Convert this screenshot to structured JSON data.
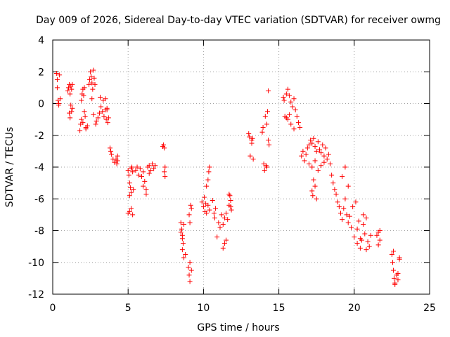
{
  "chart_data": {
    "type": "scatter",
    "title": "Day 009 of 2026, Sidereal Day-to-day VTEC variation (SDTVAR) for receiver owmg",
    "xlabel": "GPS time / hours",
    "ylabel": "SDTVAR / TECUs",
    "xlim": [
      0,
      25
    ],
    "ylim": [
      -12,
      4
    ],
    "xticks": [
      0,
      5,
      10,
      15,
      20,
      25
    ],
    "yticks": [
      -12,
      -10,
      -8,
      -6,
      -4,
      -2,
      0,
      2,
      4
    ],
    "grid": true,
    "marker": "+",
    "color": "#ff0000",
    "series": [
      {
        "name": "SDTVAR",
        "x": [
          0.25,
          0.3,
          0.35,
          0.4,
          0.45,
          0.5,
          0.3,
          0.4,
          1.0,
          1.05,
          1.1,
          1.15,
          1.2,
          1.25,
          1.3,
          1.1,
          1.15,
          1.2,
          1.25,
          1.3,
          1.8,
          1.85,
          1.9,
          1.95,
          2.0,
          2.05,
          2.1,
          2.15,
          2.2,
          1.9,
          2.0,
          2.1,
          2.2,
          2.3,
          2.4,
          2.45,
          2.5,
          2.55,
          2.6,
          2.65,
          2.7,
          2.75,
          2.8,
          2.6,
          2.7,
          2.85,
          2.9,
          3.0,
          3.1,
          3.15,
          3.2,
          3.3,
          3.35,
          3.4,
          3.5,
          3.55,
          3.6,
          3.65,
          3.7,
          3.5,
          3.6,
          3.8,
          3.85,
          3.9,
          4.0,
          4.1,
          4.2,
          4.25,
          4.3,
          4.3,
          5.0,
          5.05,
          5.1,
          5.15,
          5.2,
          5.25,
          5.3,
          5.35,
          5.0,
          5.1,
          5.2,
          5.3,
          5.1,
          5.2,
          5.5,
          5.6,
          5.7,
          5.8,
          5.9,
          6.0,
          6.1,
          6.2,
          6.3,
          6.4,
          6.5,
          6.6,
          6.7,
          6.8,
          6.0,
          6.2,
          6.4,
          7.3,
          7.35,
          7.4,
          7.45,
          7.4,
          7.45,
          8.5,
          8.55,
          8.6,
          8.65,
          8.7,
          8.6,
          8.7,
          8.8,
          8.5,
          8.6,
          9.0,
          9.05,
          9.1,
          9.15,
          9.2,
          9.1,
          9.2,
          9.05,
          9.1,
          9.9,
          10.0,
          10.05,
          10.1,
          10.15,
          10.2,
          10.3,
          10.35,
          10.4,
          10.2,
          10.3,
          10.4,
          10.6,
          10.7,
          10.75,
          10.8,
          10.9,
          11.0,
          11.1,
          11.2,
          11.3,
          11.4,
          11.5,
          11.6,
          11.3,
          11.4,
          11.5,
          11.7,
          11.75,
          11.8,
          11.85,
          11.7,
          11.8,
          13.0,
          13.05,
          13.1,
          13.2,
          13.25,
          13.3,
          13.2,
          13.9,
          13.95,
          14.0,
          14.05,
          14.1,
          14.15,
          14.2,
          14.25,
          14.3,
          14.3,
          14.35,
          14.2,
          15.3,
          15.35,
          15.4,
          15.5,
          15.6,
          15.7,
          15.8,
          15.9,
          16.0,
          16.1,
          15.5,
          15.6,
          15.7,
          15.8,
          16.0,
          16.2,
          16.3,
          16.4,
          16.5,
          16.6,
          16.7,
          16.8,
          16.9,
          17.0,
          17.1,
          17.2,
          17.3,
          17.4,
          17.5,
          17.6,
          17.7,
          17.8,
          17.9,
          18.0,
          18.1,
          18.2,
          17.0,
          17.2,
          17.4,
          17.6,
          17.8,
          18.0,
          17.2,
          17.25,
          17.3,
          17.4,
          17.5,
          18.3,
          18.4,
          18.5,
          18.6,
          18.7,
          18.8,
          18.9,
          19.0,
          19.1,
          19.2,
          19.3,
          19.4,
          19.5,
          19.6,
          19.2,
          19.4,
          19.6,
          19.7,
          19.8,
          19.9,
          20.0,
          20.1,
          20.2,
          20.3,
          20.4,
          20.5,
          20.6,
          20.7,
          20.8,
          20.9,
          21.0,
          21.1,
          20.2,
          20.4,
          20.6,
          20.8,
          21.5,
          21.6,
          21.7,
          21.6,
          21.7,
          22.5,
          22.55,
          22.6,
          22.65,
          22.7,
          22.8,
          22.9,
          23.0,
          22.6,
          22.7,
          22.9,
          23.0
        ],
        "y": [
          1.9,
          1.5,
          0.2,
          -0.1,
          1.8,
          0.3,
          1.0,
          0.0,
          0.8,
          1.0,
          1.2,
          0.6,
          1.1,
          0.9,
          -0.3,
          -0.6,
          -0.9,
          -0.1,
          -0.5,
          1.2,
          -1.7,
          -1.3,
          0.2,
          0.6,
          0.9,
          0.5,
          1.0,
          -0.8,
          -1.5,
          -1.0,
          -1.2,
          -0.5,
          -1.6,
          -1.4,
          1.2,
          1.5,
          2.0,
          1.7,
          1.3,
          0.9,
          2.1,
          1.6,
          1.2,
          0.3,
          -0.7,
          -1.3,
          -1.1,
          -0.9,
          -0.6,
          0.4,
          -0.2,
          -0.5,
          0.2,
          -0.8,
          -0.4,
          -1.0,
          -0.3,
          -1.2,
          -0.9,
          0.3,
          -0.4,
          -2.8,
          -3.0,
          -3.2,
          -3.5,
          -3.7,
          -3.5,
          -3.8,
          -3.3,
          -3.6,
          -4.2,
          -4.5,
          -5.0,
          -5.3,
          -5.6,
          -4.0,
          -4.3,
          -5.4,
          -6.9,
          -6.8,
          -6.6,
          -7.0,
          -5.8,
          -4.1,
          -4.2,
          -4.0,
          -4.5,
          -4.1,
          -4.6,
          -4.3,
          -4.9,
          -5.4,
          -4.0,
          -3.9,
          -4.2,
          -3.8,
          -4.1,
          -3.9,
          -5.2,
          -5.7,
          -4.4,
          -2.7,
          -2.6,
          -2.8,
          -4.0,
          -4.3,
          -4.6,
          -7.5,
          -7.9,
          -8.3,
          -8.8,
          -7.6,
          -9.2,
          -9.7,
          -9.5,
          -8.1,
          -8.5,
          -10.3,
          -10.8,
          -11.2,
          -6.4,
          -6.6,
          -10.0,
          -10.5,
          -7.0,
          -7.5,
          -6.2,
          -6.5,
          -5.9,
          -6.8,
          -6.3,
          -5.2,
          -4.8,
          -4.3,
          -4.0,
          -6.9,
          -6.4,
          -6.7,
          -6.1,
          -6.9,
          -7.2,
          -6.6,
          -8.4,
          -7.5,
          -7.8,
          -7.0,
          -7.6,
          -7.2,
          -6.9,
          -7.3,
          -9.1,
          -8.8,
          -8.6,
          -6.4,
          -5.8,
          -6.1,
          -6.7,
          -5.7,
          -6.5,
          -1.9,
          -2.1,
          -3.3,
          -2.3,
          -2.2,
          -3.5,
          -2.5,
          -1.8,
          -1.5,
          -3.8,
          -4.2,
          -0.8,
          -3.9,
          -4.0,
          -0.5,
          0.8,
          -2.3,
          -2.6,
          -1.3,
          0.4,
          0.2,
          -0.8,
          0.6,
          0.9,
          0.5,
          0.1,
          -0.2,
          0.3,
          -0.4,
          -0.9,
          -1.0,
          -0.7,
          -1.3,
          -1.6,
          -0.8,
          -1.2,
          -1.5,
          -3.3,
          -3.0,
          -3.6,
          -3.2,
          -2.8,
          -2.6,
          -2.3,
          -2.5,
          -2.2,
          -2.7,
          -3.0,
          -2.4,
          -2.9,
          -3.1,
          -2.6,
          -3.3,
          -2.8,
          -3.5,
          -3.8,
          -4.0,
          -3.6,
          -4.2,
          -3.9,
          -3.7,
          -5.5,
          -5.8,
          -4.8,
          -5.2,
          -6.0,
          -3.2,
          -3.8,
          -4.5,
          -5.0,
          -5.4,
          -5.7,
          -6.2,
          -6.5,
          -6.9,
          -7.3,
          -6.6,
          -6.0,
          -7.0,
          -7.5,
          -4.6,
          -4.0,
          -5.2,
          -7.1,
          -7.8,
          -6.5,
          -8.4,
          -6.2,
          -8.8,
          -7.4,
          -9.1,
          -8.6,
          -7.6,
          -8.2,
          -7.2,
          -8.7,
          -9.0,
          -8.3,
          -7.9,
          -8.5,
          -7.0,
          -9.2,
          -8.3,
          -8.1,
          -8.0,
          -8.9,
          -8.6,
          -9.5,
          -10.0,
          -10.5,
          -11.0,
          -11.3,
          -10.8,
          -11.1,
          -9.8,
          -9.3,
          -11.4,
          -10.7,
          -9.7
        ]
      }
    ]
  }
}
